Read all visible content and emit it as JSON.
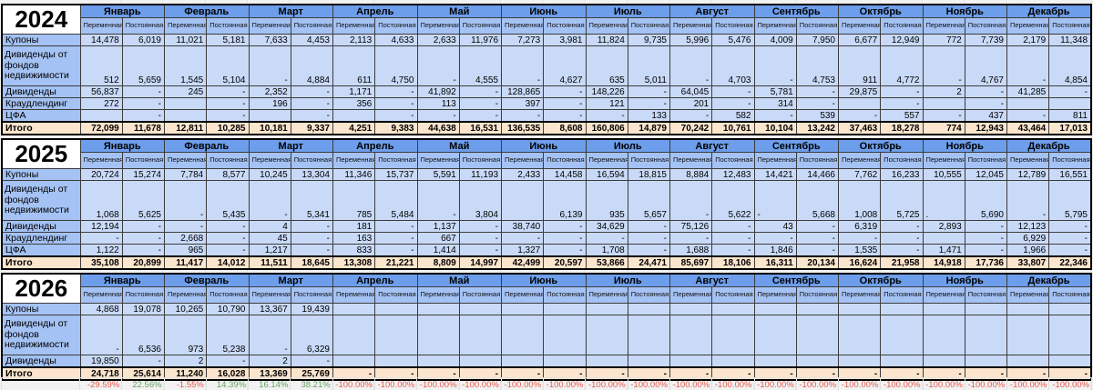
{
  "months": [
    "Январь",
    "Февраль",
    "Март",
    "Апрель",
    "Май",
    "Июнь",
    "Июль",
    "Август",
    "Сентябрь",
    "Октябрь",
    "Ноябрь",
    "Декабрь"
  ],
  "sub_headers": [
    "Переменная часть",
    "Постоянная часть"
  ],
  "colors": {
    "month_header": "#6d9eeb",
    "sub_header": "#a4c2f4",
    "row_label": "#a4c2f4",
    "data_cell": "#c9daf8",
    "total_row": "#fce5cd",
    "negative_pct": "#e4594d",
    "positive_pct": "#62a15f"
  },
  "tables": [
    {
      "year": "2024",
      "rows": [
        {
          "label": "Купоны",
          "tall": false,
          "cells": [
            "14,478",
            "6,019",
            "11,021",
            "5,181",
            "7,633",
            "4,453",
            "2,113",
            "4,633",
            "2,633",
            "11,976",
            "7,273",
            "3,981",
            "11,824",
            "9,735",
            "5,996",
            "5,476",
            "4,009",
            "7,950",
            "6,677",
            "12,949",
            "772",
            "7,739",
            "2,179",
            "11,348"
          ]
        },
        {
          "label": "Дивиденды от фондов недвижимости",
          "tall": true,
          "cells": [
            "512",
            "5,659",
            "1,545",
            "5,104",
            "-",
            "4,884",
            "611",
            "4,750",
            "-",
            "4,555",
            "-",
            "4,627",
            "635",
            "5,011",
            "-",
            "4,703",
            "-",
            "4,753",
            "911",
            "4,772",
            "-",
            "4,767",
            "-",
            "4,854"
          ]
        },
        {
          "label": "Дивиденды",
          "tall": false,
          "cells": [
            "56,837",
            "-",
            "245",
            "-",
            "2,352",
            "-",
            "1,171",
            "-",
            "41,892",
            "-",
            "128,865",
            "-",
            "148,226",
            "-",
            "64,045",
            "-",
            "5,781",
            "-",
            "29,875",
            "-",
            "2",
            "-",
            "41,285",
            "-"
          ]
        },
        {
          "label": "Краудлендинг",
          "tall": false,
          "cells": [
            "272",
            "-",
            "",
            "-",
            "196",
            "-",
            "356",
            "-",
            "113",
            "-",
            "397",
            "-",
            "121",
            "-",
            "201",
            "-",
            "314",
            "-",
            "",
            "-",
            "",
            "-",
            "",
            ""
          ]
        },
        {
          "label": "ЦФА",
          "tall": false,
          "cells": [
            "",
            "-",
            "",
            "-",
            "",
            "-",
            "",
            "-",
            "-",
            "-",
            "-",
            "-",
            "-",
            "133",
            "-",
            "582",
            "-",
            "539",
            "-",
            "557",
            "-",
            "437",
            "-",
            "811"
          ]
        }
      ],
      "total": {
        "label": "Итого",
        "cells": [
          "72,099",
          "11,678",
          "12,811",
          "10,285",
          "10,181",
          "9,337",
          "4,251",
          "9,383",
          "44,638",
          "16,531",
          "136,535",
          "8,608",
          "160,806",
          "14,879",
          "70,242",
          "10,761",
          "10,104",
          "13,242",
          "37,463",
          "18,278",
          "774",
          "12,943",
          "43,464",
          "17,013"
        ]
      }
    },
    {
      "year": "2025",
      "rows": [
        {
          "label": "Купоны",
          "tall": false,
          "cells": [
            "20,724",
            "15,274",
            "7,784",
            "8,577",
            "10,245",
            "13,304",
            "11,346",
            "15,737",
            "5,591",
            "11,193",
            "2,433",
            "14,458",
            "16,594",
            "18,815",
            "8,884",
            "12,483",
            "14,421",
            "14,466",
            "7,762",
            "16,233",
            "10,555",
            "12,045",
            "12,789",
            "16,551"
          ]
        },
        {
          "label": "Дивиденды от фондов недвижимости",
          "tall": true,
          "cells": [
            "1,068",
            "5,625",
            "-",
            "5,435",
            "-",
            "5,341",
            "785",
            "5,484",
            "-",
            "3,804",
            "",
            "6,139",
            "935",
            "5,657",
            "-",
            "5,622",
            {
              "v": "-",
              "align": "left"
            },
            "5,668",
            "1,008",
            "5,725",
            {
              "v": ".",
              "align": "left"
            },
            "5,690",
            "-",
            "5,795"
          ]
        },
        {
          "label": "Дивиденды",
          "tall": false,
          "cells": [
            "12,194",
            "-",
            "-",
            "-",
            "4",
            "-",
            "181",
            "-",
            "1,137",
            "-",
            "38,740",
            "-",
            "34,629",
            "-",
            "75,126",
            "-",
            "43",
            "-",
            "6,319",
            "-",
            "2,893",
            "-",
            "12,123",
            "-"
          ]
        },
        {
          "label": "Краудлендинг",
          "tall": false,
          "cells": [
            "-",
            "-",
            "2,668",
            "-",
            "45",
            "-",
            "163",
            "-",
            "667",
            "-",
            "-",
            "-",
            "-",
            "-",
            "-",
            "-",
            "-",
            "-",
            "-",
            "-",
            "",
            "-",
            "6,929",
            "-"
          ]
        },
        {
          "label": "ЦФА",
          "tall": false,
          "cells": [
            "1,122",
            "-",
            "965",
            "-",
            "1,217",
            "-",
            "833",
            "-",
            "1,414",
            "-",
            "1,327",
            "-",
            "1,708",
            "-",
            "1,688",
            "-",
            "1,846",
            "-",
            "1,535",
            "-",
            "1,471",
            "-",
            "1,966",
            "-"
          ]
        }
      ],
      "total": {
        "label": "Итого",
        "cells": [
          "35,108",
          "20,899",
          "11,417",
          "14,012",
          "11,511",
          "18,645",
          "13,308",
          "21,221",
          "8,809",
          "14,997",
          "42,499",
          "20,597",
          "53,866",
          "24,471",
          "85,697",
          "18,106",
          "16,311",
          "20,134",
          "16,624",
          "21,958",
          "14,918",
          "17,736",
          "33,807",
          "22,346"
        ]
      }
    },
    {
      "year": "2026",
      "rows": [
        {
          "label": "Купоны",
          "tall": false,
          "cells": [
            "4,868",
            "19,078",
            "10,265",
            "10,790",
            "13,367",
            "19,439",
            "",
            "",
            "",
            "",
            "",
            "",
            "",
            "",
            "",
            "",
            "",
            "",
            "",
            "",
            "",
            "",
            "",
            ""
          ]
        },
        {
          "label": "Дивиденды от фондов недвижимости",
          "tall": true,
          "cells": [
            "-",
            "6,536",
            "973",
            "5,238",
            "-",
            "6,329",
            "",
            "",
            "",
            "",
            "",
            "",
            "",
            "",
            "",
            "",
            "",
            "",
            "",
            "",
            "",
            "",
            "",
            ""
          ]
        },
        {
          "label": "Дивиденды",
          "tall": false,
          "cells": [
            "19,850",
            "-",
            "2",
            "-",
            "2",
            "-",
            "",
            "",
            "",
            "",
            "",
            "",
            "",
            "",
            "",
            "",
            "",
            "",
            "",
            "",
            "",
            "",
            "",
            ""
          ]
        }
      ],
      "total": {
        "label": "Итого",
        "cells": [
          "24,718",
          "25,614",
          "11,240",
          "16,028",
          "13,369",
          "25,769",
          "-",
          "-",
          "-",
          "-",
          "-",
          "-",
          "-",
          "-",
          "-",
          "-",
          "-",
          "-",
          "-",
          "-",
          "-",
          "-",
          "-",
          "-"
        ]
      }
    }
  ],
  "percent_row": {
    "cells": [
      "-29.59%",
      "22.56%",
      "-1.55%",
      "14.39%",
      "16.14%",
      "38.21%",
      "-100.00%",
      "-100.00%",
      "-100.00%",
      "-100.00%",
      "-100.00%",
      "-100.00%",
      "-100.00%",
      "-100.00%",
      "-100.00%",
      "-100.00%",
      "-100.00%",
      "-100.00%",
      "-100.00%",
      "-100.00%",
      "-100.00%",
      "-100.00%",
      "-100.00%",
      "-100.00%"
    ]
  }
}
